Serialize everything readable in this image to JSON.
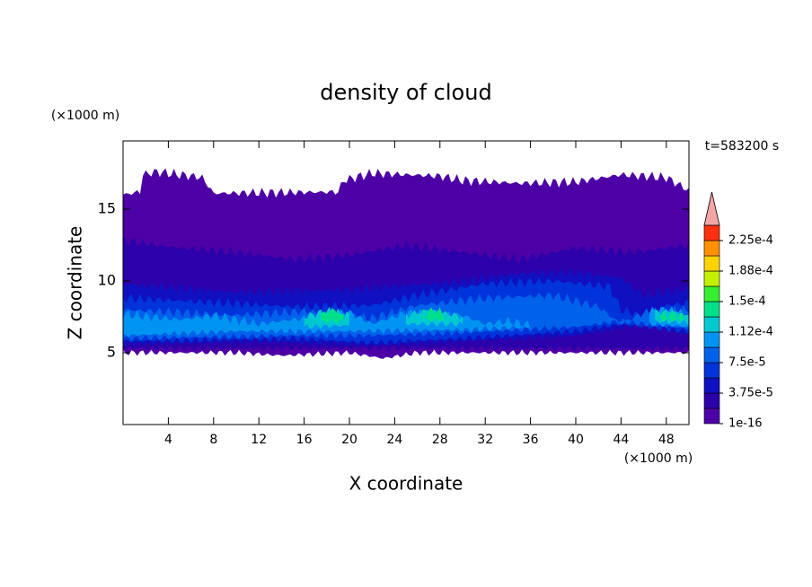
{
  "chart_data": {
    "type": "contour",
    "title": "density of cloud",
    "x_label": "X coordinate",
    "y_label": "Z coordinate",
    "x_unit": "(×1000 m)",
    "y_unit": "(×1000 m)",
    "time_label": "t=583200 s",
    "xlim": [
      0,
      50
    ],
    "xticks": [
      4,
      8,
      12,
      16,
      20,
      24,
      28,
      32,
      36,
      40,
      44,
      48
    ],
    "ylim": [
      0,
      19.75
    ],
    "yticks": [
      5,
      10,
      15
    ],
    "colorbar": {
      "colors": [
        "#4d00a6",
        "#2c00aa",
        "#1010c0",
        "#0034da",
        "#0062ea",
        "#0094f2",
        "#00c8d0",
        "#00e08a",
        "#38ee30",
        "#c4f000",
        "#ffd200",
        "#ff9000",
        "#ff3010"
      ],
      "extend_color": "#f4a6a6",
      "ticks": [
        {
          "value": 1e-16,
          "label": "1e-16"
        },
        {
          "value": 3.75e-05,
          "label": "3.75e-5"
        },
        {
          "value": 7.5e-05,
          "label": "7.5e-5"
        },
        {
          "value": 0.0001125,
          "label": "1.12e-4"
        },
        {
          "value": 0.00015,
          "label": "1.5e-4"
        },
        {
          "value": 0.0001875,
          "label": "1.88e-4"
        },
        {
          "value": 0.000225,
          "label": "2.25e-4"
        }
      ]
    }
  }
}
